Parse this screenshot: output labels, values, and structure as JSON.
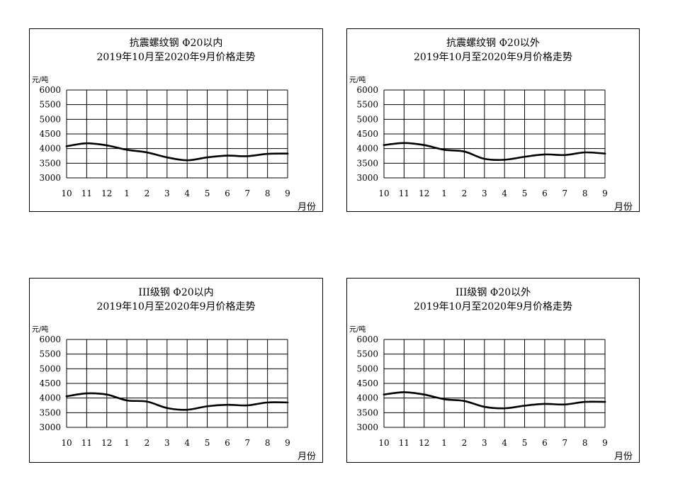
{
  "chart_data": [
    {
      "type": "line",
      "title": "抗震螺纹钢 Φ20以内",
      "subtitle": "2019年10月至2020年9月价格走势",
      "ylabel": "元/吨",
      "xlabel": "月份",
      "categories": [
        "10",
        "11",
        "12",
        "1",
        "2",
        "3",
        "4",
        "5",
        "6",
        "7",
        "8",
        "9"
      ],
      "y_ticks": [
        "6000",
        "5500",
        "5000",
        "4500",
        "4000",
        "3500",
        "3000"
      ],
      "ylim": [
        3000,
        6000
      ],
      "grid": true,
      "values": [
        4080,
        4180,
        4110,
        3960,
        3870,
        3700,
        3600,
        3700,
        3760,
        3740,
        3820,
        3830
      ],
      "line_color": "#000000"
    },
    {
      "type": "line",
      "title": "抗震螺纹钢 Φ20以外",
      "subtitle": "2019年10月至2020年9月价格走势",
      "ylabel": "元/吨",
      "xlabel": "月份",
      "categories": [
        "10",
        "11",
        "12",
        "1",
        "2",
        "3",
        "4",
        "5",
        "6",
        "7",
        "8",
        "9"
      ],
      "y_ticks": [
        "6000",
        "5500",
        "5000",
        "4500",
        "4000",
        "3500",
        "3000"
      ],
      "ylim": [
        3000,
        6000
      ],
      "grid": true,
      "values": [
        4120,
        4190,
        4120,
        3960,
        3900,
        3650,
        3620,
        3720,
        3800,
        3780,
        3870,
        3830
      ],
      "line_color": "#000000"
    },
    {
      "type": "line",
      "title": "III级钢 Φ20以内",
      "subtitle": "2019年10月至2020年9月价格走势",
      "ylabel": "元/吨",
      "xlabel": "月份",
      "categories": [
        "10",
        "11",
        "12",
        "1",
        "2",
        "3",
        "4",
        "5",
        "6",
        "7",
        "8",
        "9"
      ],
      "y_ticks": [
        "6000",
        "5500",
        "5000",
        "4500",
        "4000",
        "3500",
        "3000"
      ],
      "ylim": [
        3000,
        6000
      ],
      "grid": true,
      "values": [
        4060,
        4160,
        4120,
        3920,
        3880,
        3660,
        3600,
        3720,
        3770,
        3750,
        3850,
        3850
      ],
      "line_color": "#000000"
    },
    {
      "type": "line",
      "title": "III级钢 Φ20以外",
      "subtitle": "2019年10月至2020年9月价格走势",
      "ylabel": "元/吨",
      "xlabel": "月份",
      "categories": [
        "10",
        "11",
        "12",
        "1",
        "2",
        "3",
        "4",
        "5",
        "6",
        "7",
        "8",
        "9"
      ],
      "y_ticks": [
        "6000",
        "5500",
        "5000",
        "4500",
        "4000",
        "3500",
        "3000"
      ],
      "ylim": [
        3000,
        6000
      ],
      "grid": true,
      "values": [
        4120,
        4200,
        4120,
        3960,
        3900,
        3700,
        3650,
        3740,
        3800,
        3780,
        3870,
        3870
      ],
      "line_color": "#000000"
    }
  ]
}
